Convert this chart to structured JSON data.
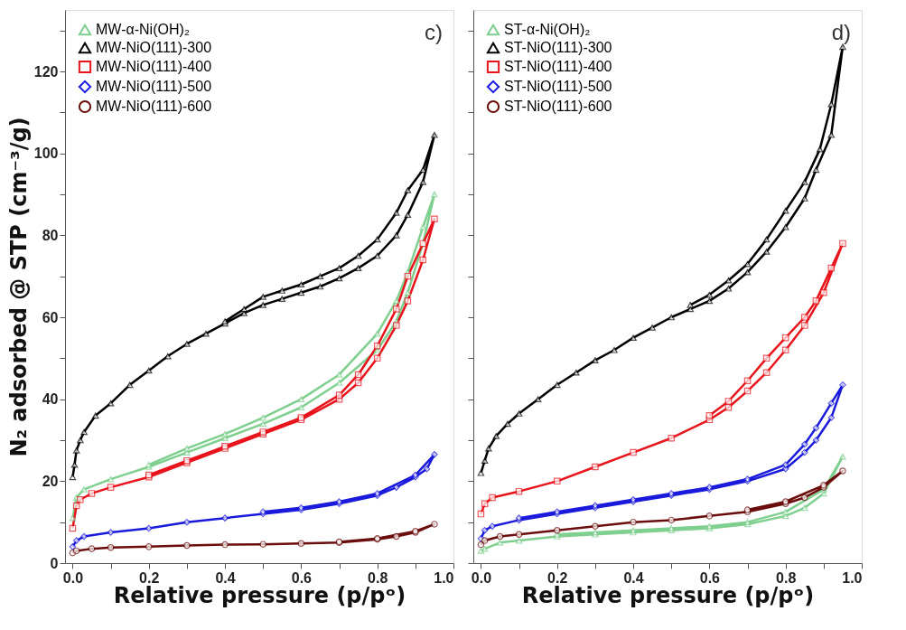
{
  "chart_data": [
    {
      "type": "line",
      "xlabel": "Relative pressure (p/pᵒ)",
      "ylabel": "N₂ adsorbed @ STP (cm⁻³/g)",
      "annotations": [
        "c)"
      ],
      "legend": "top left",
      "grid": false,
      "line_style": "solid",
      "xlim": [
        -0.02,
        1.0
      ],
      "ylim": [
        0,
        135
      ],
      "xticks": [
        {
          "value": 0,
          "label": "0.0"
        },
        {
          "value": 0.1,
          "label": null
        },
        {
          "value": 0.2,
          "label": "0.2"
        },
        {
          "value": 0.3,
          "label": null
        },
        {
          "value": 0.4,
          "label": "0.4"
        },
        {
          "value": 0.5,
          "label": null
        },
        {
          "value": 0.6,
          "label": "0.6"
        },
        {
          "value": 0.7,
          "label": null
        },
        {
          "value": 0.8,
          "label": "0.8"
        },
        {
          "value": 0.9,
          "label": null
        },
        {
          "value": 1.0,
          "label": "1.0"
        }
      ],
      "yticks": [
        0,
        {
          "value": 10,
          "label": null
        },
        20,
        {
          "value": 30,
          "label": null
        },
        40,
        {
          "value": 50,
          "label": null
        },
        60,
        {
          "value": 70,
          "label": null
        },
        80,
        {
          "value": 90,
          "label": null
        },
        100,
        {
          "value": 110,
          "label": null
        },
        120,
        {
          "value": 130,
          "label": null
        }
      ],
      "series": [
        {
          "name": "MW-α-Ni(OH)₂",
          "color": "#7fcf8f",
          "marker": "triangle",
          "x": [
            0.0,
            0.01,
            0.03,
            0.1,
            0.2,
            0.3,
            0.4,
            0.5,
            0.6,
            0.7,
            0.8,
            0.85,
            0.88,
            0.92,
            0.95,
            0.92,
            0.88,
            0.85,
            0.8,
            0.7,
            0.6,
            0.5,
            0.4,
            0.3,
            0.2
          ],
          "values": [
            11,
            16,
            18,
            20.5,
            23.5,
            27,
            30.5,
            34,
            38,
            44,
            52,
            59,
            66,
            78,
            90,
            82,
            71,
            64,
            56,
            46,
            40,
            35.5,
            31.5,
            28,
            24
          ]
        },
        {
          "name": "MW-NiO(111)-300",
          "color": "#000000",
          "marker": "triangle",
          "x": [
            0.0,
            0.005,
            0.01,
            0.02,
            0.03,
            0.06,
            0.1,
            0.15,
            0.2,
            0.25,
            0.3,
            0.35,
            0.4,
            0.45,
            0.5,
            0.55,
            0.6,
            0.65,
            0.7,
            0.75,
            0.8,
            0.85,
            0.88,
            0.92,
            0.95,
            0.92,
            0.88,
            0.85,
            0.8,
            0.75,
            0.7,
            0.65,
            0.6,
            0.55,
            0.5,
            0.45,
            0.4
          ],
          "values": [
            21,
            24,
            27.5,
            30,
            32,
            36,
            39,
            43.5,
            47,
            50.5,
            53.5,
            56,
            58.5,
            61,
            63,
            64.5,
            66,
            67.5,
            69.5,
            72,
            75,
            80,
            85,
            93,
            104.5,
            96,
            91,
            85.5,
            79,
            75,
            72,
            70,
            68,
            66.5,
            65,
            62,
            59
          ]
        },
        {
          "name": "MW-NiO(111)-400",
          "color": "#e8131b",
          "marker": "square",
          "x": [
            0.0,
            0.01,
            0.02,
            0.05,
            0.1,
            0.2,
            0.3,
            0.4,
            0.5,
            0.6,
            0.7,
            0.75,
            0.8,
            0.85,
            0.88,
            0.92,
            0.95,
            0.92,
            0.88,
            0.85,
            0.8,
            0.75,
            0.7,
            0.6,
            0.5,
            0.4,
            0.3,
            0.2
          ],
          "values": [
            8.5,
            14,
            15.5,
            17,
            18.5,
            21,
            24.5,
            28,
            31.5,
            35,
            40,
            44,
            50,
            58,
            64,
            74,
            84,
            78,
            70,
            62,
            53,
            46,
            41,
            35.5,
            32,
            28.5,
            25,
            21.5
          ]
        },
        {
          "name": "MW-NiO(111)-500",
          "color": "#1a1adc",
          "marker": "diamond",
          "x": [
            0.0,
            0.01,
            0.03,
            0.1,
            0.2,
            0.3,
            0.4,
            0.5,
            0.6,
            0.7,
            0.8,
            0.85,
            0.9,
            0.93,
            0.95,
            0.9,
            0.8,
            0.7,
            0.6,
            0.5
          ],
          "values": [
            4,
            5.5,
            6.5,
            7.5,
            8.5,
            10,
            11,
            12,
            13,
            14.5,
            16.5,
            18.5,
            21,
            23,
            26.5,
            21.5,
            17,
            15,
            13.5,
            12.5
          ]
        },
        {
          "name": "MW-NiO(111)-600",
          "color": "#6b0d0d",
          "marker": "circle",
          "x": [
            0.0,
            0.01,
            0.05,
            0.1,
            0.2,
            0.3,
            0.4,
            0.5,
            0.6,
            0.7,
            0.8,
            0.85,
            0.9,
            0.95,
            0.9,
            0.8,
            0.7
          ],
          "values": [
            2.5,
            3,
            3.5,
            3.8,
            4,
            4.3,
            4.5,
            4.6,
            4.8,
            5,
            5.8,
            6.5,
            7.5,
            9.5,
            7.8,
            6,
            5.2
          ]
        }
      ]
    },
    {
      "type": "line",
      "xlabel": "Relative pressure (p/pᵒ)",
      "annotations": [
        "d)"
      ],
      "legend": "top left",
      "grid": false,
      "line_style": "solid",
      "tick_labels": "x",
      "xlim": [
        -0.02,
        1.0
      ],
      "ylim": [
        0,
        135
      ],
      "xticks": [
        {
          "value": 0,
          "label": "0.0"
        },
        {
          "value": 0.1,
          "label": null
        },
        {
          "value": 0.2,
          "label": "0.2"
        },
        {
          "value": 0.3,
          "label": null
        },
        {
          "value": 0.4,
          "label": "0.4"
        },
        {
          "value": 0.5,
          "label": null
        },
        {
          "value": 0.6,
          "label": "0.6"
        },
        {
          "value": 0.7,
          "label": null
        },
        {
          "value": 0.8,
          "label": "0.8"
        },
        {
          "value": 0.9,
          "label": null
        },
        {
          "value": 1.0,
          "label": "1.0"
        }
      ],
      "yticks": [
        0,
        {
          "value": 10,
          "label": null
        },
        20,
        {
          "value": 30,
          "label": null
        },
        40,
        {
          "value": 50,
          "label": null
        },
        60,
        {
          "value": 70,
          "label": null
        },
        80,
        {
          "value": 90,
          "label": null
        },
        100,
        {
          "value": 110,
          "label": null
        },
        120,
        {
          "value": 130,
          "label": null
        }
      ],
      "series": [
        {
          "name": "ST-α-Ni(OH)₂",
          "color": "#7fcf8f",
          "marker": "triangle",
          "x": [
            0.0,
            0.01,
            0.05,
            0.1,
            0.2,
            0.3,
            0.4,
            0.5,
            0.6,
            0.7,
            0.8,
            0.85,
            0.9,
            0.95,
            0.9,
            0.8,
            0.7,
            0.6,
            0.5,
            0.4,
            0.3,
            0.2
          ],
          "values": [
            3,
            3.5,
            5,
            5.5,
            6.5,
            7,
            7.5,
            8,
            8.5,
            9.5,
            11.5,
            13.5,
            17,
            26,
            18,
            12.5,
            10,
            9,
            8.5,
            8,
            7.5,
            7
          ]
        },
        {
          "name": "ST-NiO(111)-300",
          "color": "#000000",
          "marker": "triangle",
          "x": [
            0.0,
            0.01,
            0.02,
            0.04,
            0.07,
            0.1,
            0.15,
            0.2,
            0.25,
            0.3,
            0.35,
            0.4,
            0.45,
            0.5,
            0.55,
            0.6,
            0.65,
            0.7,
            0.75,
            0.8,
            0.85,
            0.88,
            0.92,
            0.95,
            0.92,
            0.89,
            0.85,
            0.8,
            0.75,
            0.7,
            0.65,
            0.6,
            0.55
          ],
          "values": [
            22,
            25,
            28,
            31,
            34,
            36.5,
            40,
            43.5,
            46.5,
            49.5,
            52,
            55,
            57.5,
            60,
            62,
            64,
            67,
            71,
            76,
            82,
            89,
            96,
            104.5,
            126,
            112,
            101,
            93,
            86,
            79,
            73,
            69,
            65.5,
            63
          ]
        },
        {
          "name": "ST-NiO(111)-400",
          "color": "#e8131b",
          "marker": "square",
          "x": [
            0.0,
            0.01,
            0.03,
            0.1,
            0.2,
            0.3,
            0.4,
            0.5,
            0.6,
            0.65,
            0.7,
            0.75,
            0.8,
            0.85,
            0.9,
            0.95,
            0.92,
            0.88,
            0.85,
            0.8,
            0.75,
            0.7,
            0.65,
            0.6
          ],
          "values": [
            12,
            14.5,
            16,
            17.5,
            20,
            23.5,
            27,
            30.5,
            35,
            38,
            42,
            46.5,
            52,
            58,
            66,
            78,
            72,
            64,
            60,
            55,
            50,
            44.5,
            39.5,
            36
          ]
        },
        {
          "name": "ST-NiO(111)-500",
          "color": "#1a1adc",
          "marker": "diamond",
          "x": [
            0.0,
            0.01,
            0.03,
            0.1,
            0.2,
            0.3,
            0.4,
            0.5,
            0.6,
            0.7,
            0.8,
            0.85,
            0.88,
            0.92,
            0.95,
            0.92,
            0.88,
            0.85,
            0.8,
            0.7,
            0.6,
            0.5,
            0.4,
            0.3,
            0.2,
            0.1
          ],
          "values": [
            6,
            8,
            9,
            10.5,
            12,
            13.5,
            15,
            16.5,
            18,
            20,
            23,
            27,
            30,
            35.5,
            43.5,
            39,
            33,
            29,
            24,
            20.5,
            18.5,
            17,
            15.5,
            14,
            12.5,
            11
          ]
        },
        {
          "name": "ST-NiO(111)-600",
          "color": "#6b0d0d",
          "marker": "circle",
          "x": [
            0.0,
            0.01,
            0.05,
            0.1,
            0.2,
            0.3,
            0.4,
            0.5,
            0.6,
            0.7,
            0.8,
            0.85,
            0.9,
            0.95,
            0.9,
            0.8,
            0.7
          ],
          "values": [
            4.5,
            5.5,
            6.5,
            7,
            8,
            9,
            10,
            10.5,
            11.5,
            12.5,
            14.5,
            16,
            18.5,
            22.5,
            19,
            15,
            13
          ]
        }
      ]
    }
  ]
}
